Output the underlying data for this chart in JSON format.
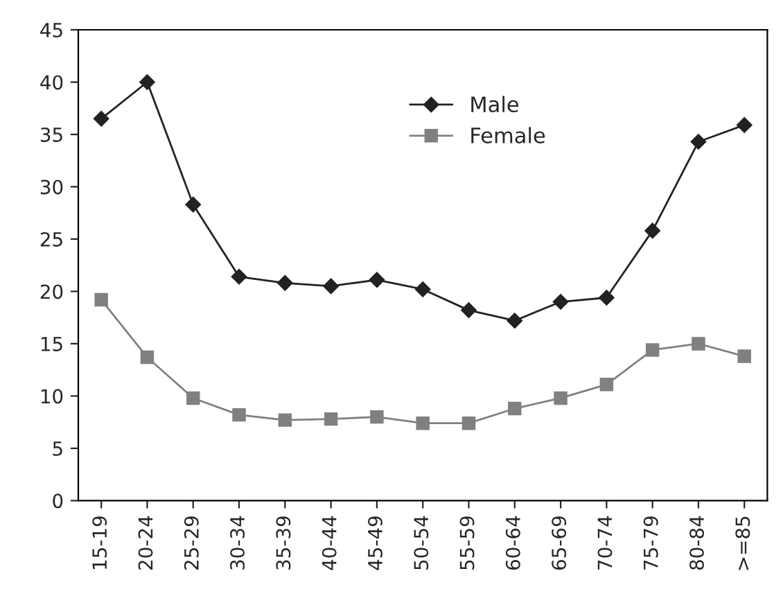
{
  "chart_data": {
    "type": "line",
    "categories": [
      "15-19",
      "20-24",
      "25-29",
      "30-34",
      "35-39",
      "40-44",
      "45-49",
      "50-54",
      "55-59",
      "60-64",
      "65-69",
      "70-74",
      "75-79",
      "80-84",
      ">=85"
    ],
    "series": [
      {
        "name": "Male",
        "color": "#222222",
        "marker": "diamond",
        "values": [
          36.5,
          40,
          28.3,
          21.4,
          20.8,
          20.5,
          21.1,
          20.2,
          18.2,
          17.2,
          19.0,
          19.4,
          25.8,
          34.3,
          35.9
        ]
      },
      {
        "name": "Female",
        "color": "#808080",
        "marker": "square",
        "values": [
          19.2,
          13.7,
          9.8,
          8.2,
          7.7,
          7.8,
          8.0,
          7.4,
          7.4,
          8.8,
          9.8,
          11.1,
          14.4,
          15.0,
          13.8
        ]
      }
    ],
    "ylim": [
      0,
      45
    ],
    "yticks": [
      0,
      5,
      10,
      15,
      20,
      25,
      30,
      35,
      40,
      45
    ],
    "grid": false,
    "legend": "top"
  }
}
